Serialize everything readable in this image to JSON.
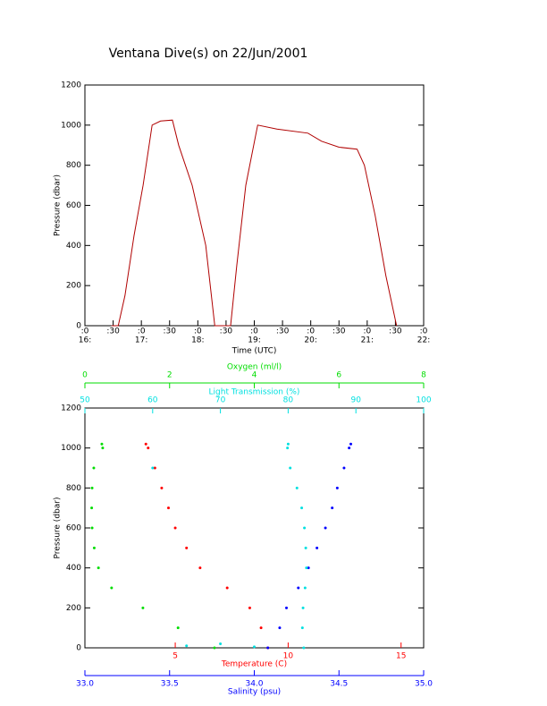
{
  "title": "Ventana Dive(s) on 22/Jun/2001",
  "chart_data": [
    {
      "type": "line",
      "xlabel": "Time (UTC)",
      "ylabel": "Pressure (dbar)",
      "x": [
        16.47,
        16.59,
        16.71,
        16.87,
        17.03,
        17.19,
        17.34,
        17.55,
        17.66,
        17.9,
        18.14,
        18.3,
        18.58,
        18.69,
        18.85,
        19.06,
        19.4,
        19.95,
        20.19,
        20.5,
        20.82,
        20.95,
        21.14,
        21.33,
        21.52
      ],
      "series": [
        {
          "color": "#b00000",
          "values": [
            0,
            0,
            150,
            450,
            700,
            1000,
            1020,
            1025,
            900,
            700,
            400,
            0,
            0,
            300,
            700,
            1000,
            980,
            960,
            920,
            890,
            880,
            800,
            550,
            250,
            0
          ]
        }
      ],
      "xlim": [
        16,
        22
      ],
      "xticks": [
        {
          "value": 16,
          "label": ":0"
        },
        {
          "value": 16.5,
          "label": ":30"
        },
        {
          "value": 17,
          "label": ":0"
        },
        {
          "value": 17.5,
          "label": ":30"
        },
        {
          "value": 18,
          "label": ":0"
        },
        {
          "value": 18.5,
          "label": ":30"
        },
        {
          "value": 19,
          "label": ":0"
        },
        {
          "value": 19.5,
          "label": ":30"
        },
        {
          "value": 20,
          "label": ":0"
        },
        {
          "value": 20.5,
          "label": ":30"
        },
        {
          "value": 21,
          "label": ":0"
        },
        {
          "value": 21.5,
          "label": ":30"
        },
        {
          "value": 22,
          "label": ":0"
        }
      ],
      "xtick_hours": [
        {
          "value": 16,
          "label": "16:"
        },
        {
          "value": 17,
          "label": "17:"
        },
        {
          "value": 18,
          "label": "18:"
        },
        {
          "value": 19,
          "label": "19:"
        },
        {
          "value": 20,
          "label": "20:"
        },
        {
          "value": 21,
          "label": "21:"
        },
        {
          "value": 22,
          "label": "22:"
        }
      ],
      "ylim": [
        0,
        1200
      ],
      "yticks": [
        0,
        200,
        400,
        600,
        800,
        1000,
        1200
      ],
      "y_inverted": true
    },
    {
      "type": "scatter",
      "ylabel": "Pressure (dbar)",
      "ylim": [
        0,
        1200
      ],
      "yticks": [
        0,
        200,
        400,
        600,
        800,
        1000,
        1200
      ],
      "y_inverted": true,
      "series": [
        {
          "name": "Temperature (C)",
          "color": "#ff0000",
          "position": "bottom",
          "xlim": [
            1,
            16
          ],
          "xticks": [
            5,
            10,
            15
          ],
          "x": [
            9.1,
            8.8,
            8.3,
            7.3,
            6.1,
            5.5,
            5.0,
            4.7,
            4.4,
            4.1,
            3.8,
            3.7
          ],
          "values": [
            0,
            100,
            200,
            300,
            400,
            500,
            600,
            700,
            800,
            900,
            1000,
            1020
          ]
        },
        {
          "name": "Salinity (psu)",
          "color": "#0000ff",
          "position": "bottom",
          "xlim": [
            33.0,
            35.0
          ],
          "xticks": [
            {
              "value": 33.0,
              "label": "33.0"
            },
            {
              "value": 33.5,
              "label": "33.5"
            },
            {
              "value": 34.0,
              "label": "34.0"
            },
            {
              "value": 34.5,
              "label": "34.5"
            },
            {
              "value": 35.0,
              "label": "35.0"
            }
          ],
          "x": [
            34.08,
            34.15,
            34.19,
            34.26,
            34.32,
            34.37,
            34.42,
            34.46,
            34.49,
            34.53,
            34.56,
            34.57
          ],
          "values": [
            0,
            100,
            200,
            300,
            400,
            500,
            600,
            700,
            800,
            900,
            1000,
            1020
          ]
        },
        {
          "name": "Light Transmission (%)",
          "color": "#00e0e0",
          "position": "top",
          "xlim": [
            50,
            100
          ],
          "xticks": [
            50,
            60,
            70,
            80,
            90,
            100
          ],
          "x": [
            82.3,
            82.1,
            82.2,
            82.5,
            82.7,
            82.6,
            82.4,
            82.0,
            81.3,
            80.3,
            79.9,
            80.0,
            65,
            70,
            75,
            60
          ],
          "values": [
            0,
            100,
            200,
            300,
            400,
            500,
            600,
            700,
            800,
            900,
            1000,
            1020,
            10,
            20,
            5,
            900
          ]
        },
        {
          "name": "Oxygen (ml/l)",
          "color": "#00dd00",
          "position": "top",
          "xlim": [
            0,
            8
          ],
          "xticks": [
            0,
            2,
            4,
            6,
            8
          ],
          "x": [
            3.06,
            2.2,
            1.37,
            0.63,
            0.32,
            0.22,
            0.17,
            0.16,
            0.17,
            0.21,
            0.42,
            0.4
          ],
          "values": [
            0,
            100,
            200,
            300,
            400,
            500,
            600,
            700,
            800,
            900,
            1000,
            1020
          ]
        }
      ]
    }
  ]
}
